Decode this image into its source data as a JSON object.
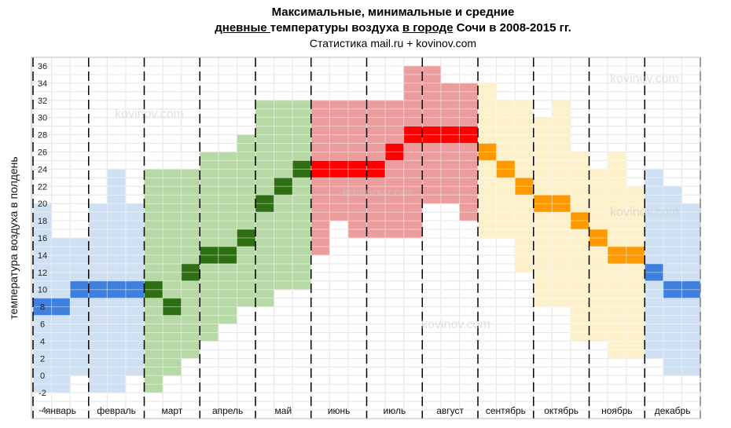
{
  "title": {
    "line1": "Максимальные, минимальные и средние",
    "line2_u1": "дневные ",
    "line2_p1": "температуры воздуха ",
    "line2_u2": "в городе",
    "line2_p2": " Сочи в 2008-2015 гг.",
    "line3": "Статистика mail.ru + kovinov.com"
  },
  "watermark": "kovinov.com",
  "chart_data": {
    "type": "heatmap",
    "ylabel": "температура воздуха в полдень",
    "xlabel": "",
    "ylim": [
      -5,
      37
    ],
    "y_ticks": [
      36,
      34,
      32,
      30,
      28,
      26,
      24,
      22,
      20,
      18,
      16,
      14,
      12,
      10,
      8,
      6,
      4,
      2,
      0,
      -2,
      -4
    ],
    "months": [
      "январь",
      "февраль",
      "март",
      "апрель",
      "май",
      "июнь",
      "июль",
      "август",
      "сентябрь",
      "октябрь",
      "ноябрь",
      "декабрь"
    ],
    "subcolumns_per_month": 3,
    "colors": {
      "winter_range": "#cfe0f3",
      "winter_avg": "#3f7fde",
      "spring_range": "#b7d9a6",
      "spring_avg": "#2f6f14",
      "summer_range": "#eb9c9c",
      "summer_avg": "#ff0000",
      "autumn_range": "#fdf1cb",
      "autumn_avg": "#ff9900"
    },
    "columns": [
      {
        "month": "январь",
        "min": -1,
        "max": 19,
        "avg": 8,
        "season": "winter"
      },
      {
        "month": "январь",
        "min": -1,
        "max": 15,
        "avg": 8,
        "season": "winter"
      },
      {
        "month": "январь",
        "min": 1,
        "max": 15,
        "avg": 10,
        "season": "winter"
      },
      {
        "month": "февраль",
        "min": -1,
        "max": 19,
        "avg": 10,
        "season": "winter"
      },
      {
        "month": "февраль",
        "min": -1,
        "max": 23,
        "avg": 10,
        "season": "winter"
      },
      {
        "month": "февраль",
        "min": 1,
        "max": 19,
        "avg": 10,
        "season": "winter"
      },
      {
        "month": "март",
        "min": -1,
        "max": 23,
        "avg": 10,
        "season": "spring"
      },
      {
        "month": "март",
        "min": 1,
        "max": 23,
        "avg": 8,
        "season": "spring"
      },
      {
        "month": "март",
        "min": 3,
        "max": 23,
        "avg": 12,
        "season": "spring"
      },
      {
        "month": "апрель",
        "min": 5,
        "max": 25,
        "avg": 14,
        "season": "spring"
      },
      {
        "month": "апрель",
        "min": 7,
        "max": 25,
        "avg": 14,
        "season": "spring"
      },
      {
        "month": "апрель",
        "min": 9,
        "max": 27,
        "avg": 16,
        "season": "spring"
      },
      {
        "month": "май",
        "min": 9,
        "max": 31,
        "avg": 20,
        "season": "spring"
      },
      {
        "month": "май",
        "min": 11,
        "max": 31,
        "avg": 22,
        "season": "spring"
      },
      {
        "month": "май",
        "min": 11,
        "max": 31,
        "avg": 24,
        "season": "spring"
      },
      {
        "month": "июнь",
        "min": 15,
        "max": 31,
        "avg": 24,
        "season": "summer"
      },
      {
        "month": "июнь",
        "min": 19,
        "max": 31,
        "avg": 24,
        "season": "summer"
      },
      {
        "month": "июнь",
        "min": 17,
        "max": 31,
        "avg": 24,
        "season": "summer"
      },
      {
        "month": "июль",
        "min": 17,
        "max": 31,
        "avg": 24,
        "season": "summer"
      },
      {
        "month": "июль",
        "min": 17,
        "max": 31,
        "avg": 26,
        "season": "summer"
      },
      {
        "month": "июль",
        "min": 17,
        "max": 35,
        "avg": 28,
        "season": "summer"
      },
      {
        "month": "август",
        "min": 21,
        "max": 35,
        "avg": 28,
        "season": "summer"
      },
      {
        "month": "август",
        "min": 21,
        "max": 33,
        "avg": 28,
        "season": "summer"
      },
      {
        "month": "август",
        "min": 19,
        "max": 33,
        "avg": 28,
        "season": "summer"
      },
      {
        "month": "сентябрь",
        "min": 17,
        "max": 33,
        "avg": 26,
        "season": "autumn"
      },
      {
        "month": "сентябрь",
        "min": 17,
        "max": 31,
        "avg": 24,
        "season": "autumn"
      },
      {
        "month": "сентябрь",
        "min": 13,
        "max": 31,
        "avg": 22,
        "season": "autumn"
      },
      {
        "month": "октябрь",
        "min": 9,
        "max": 29,
        "avg": 20,
        "season": "autumn"
      },
      {
        "month": "октябрь",
        "min": 9,
        "max": 31,
        "avg": 20,
        "season": "autumn"
      },
      {
        "month": "октябрь",
        "min": 5,
        "max": 25,
        "avg": 18,
        "season": "autumn"
      },
      {
        "month": "ноябрь",
        "min": 5,
        "max": 23,
        "avg": 16,
        "season": "autumn"
      },
      {
        "month": "ноябрь",
        "min": 3,
        "max": 25,
        "avg": 14,
        "season": "autumn"
      },
      {
        "month": "ноябрь",
        "min": 3,
        "max": 21,
        "avg": 14,
        "season": "autumn"
      },
      {
        "month": "декабрь",
        "min": 3,
        "max": 23,
        "avg": 12,
        "season": "winter"
      },
      {
        "month": "декабрь",
        "min": 1,
        "max": 21,
        "avg": 10,
        "season": "winter"
      },
      {
        "month": "декабрь",
        "min": 1,
        "max": 19,
        "avg": 10,
        "season": "winter"
      }
    ]
  }
}
